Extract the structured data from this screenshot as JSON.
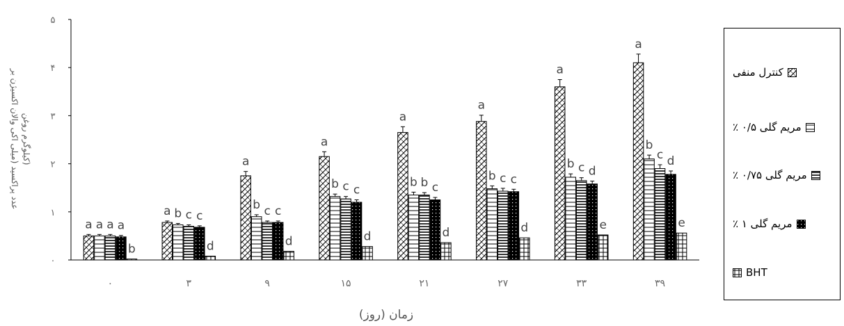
{
  "chart_data": {
    "type": "bar",
    "xlabel": "زمان (روز)",
    "ylabel_line1": "عدد پراکسید (میلی اکی والان اکسیژن بر",
    "ylabel_line2": "کیلوگرم روغن)",
    "ylim": [
      0,
      5
    ],
    "yticks": [
      "۰",
      "۱",
      "۲",
      "۳",
      "۴",
      "۵"
    ],
    "categories": [
      "۰",
      "۳",
      "۹",
      "۱۵",
      "۲۱",
      "۲۷",
      "۳۳",
      "۳۹"
    ],
    "series": [
      {
        "name": "کنترل منفی",
        "pattern": "diag",
        "values": [
          0.5,
          0.78,
          1.75,
          2.15,
          2.65,
          2.88,
          3.6,
          4.1
        ],
        "errors": [
          0.03,
          0.03,
          0.09,
          0.1,
          0.12,
          0.13,
          0.15,
          0.18
        ],
        "letters": [
          "a",
          "a",
          "a",
          "a",
          "a",
          "a",
          "a",
          "a"
        ]
      },
      {
        "name": "مریم گلی ۰/۵ ٪",
        "pattern": "hlines",
        "values": [
          0.5,
          0.73,
          0.9,
          1.32,
          1.35,
          1.48,
          1.72,
          2.1
        ],
        "errors": [
          0.03,
          0.03,
          0.04,
          0.05,
          0.06,
          0.06,
          0.07,
          0.08
        ],
        "letters": [
          "a",
          "b",
          "b",
          "b",
          "b",
          "b",
          "b",
          "b"
        ]
      },
      {
        "name": "مریم گلی ۰/۷۵ ٪",
        "pattern": "dense",
        "values": [
          0.5,
          0.7,
          0.78,
          1.27,
          1.35,
          1.43,
          1.65,
          1.9
        ],
        "errors": [
          0.03,
          0.03,
          0.03,
          0.05,
          0.05,
          0.06,
          0.06,
          0.08
        ],
        "letters": [
          "a",
          "c",
          "c",
          "c",
          "b",
          "c",
          "c",
          "c"
        ]
      },
      {
        "name": "مریم گلی ۱ ٪",
        "pattern": "dark",
        "values": [
          0.48,
          0.68,
          0.78,
          1.2,
          1.25,
          1.42,
          1.58,
          1.78
        ],
        "errors": [
          0.03,
          0.03,
          0.03,
          0.05,
          0.05,
          0.05,
          0.06,
          0.07
        ],
        "letters": [
          "a",
          "c",
          "c",
          "c",
          "c",
          "c",
          "d",
          "d"
        ]
      },
      {
        "name": "BHT",
        "pattern": "grid",
        "values": [
          0.02,
          0.08,
          0.18,
          0.28,
          0.36,
          0.46,
          0.52,
          0.56
        ],
        "errors": [
          0.0,
          0.0,
          0.0,
          0.0,
          0.0,
          0.0,
          0.0,
          0.0
        ],
        "letters": [
          "b",
          "d",
          "d",
          "d",
          "d",
          "d",
          "e",
          "e"
        ]
      }
    ],
    "legend_position": "right",
    "grid": false
  }
}
